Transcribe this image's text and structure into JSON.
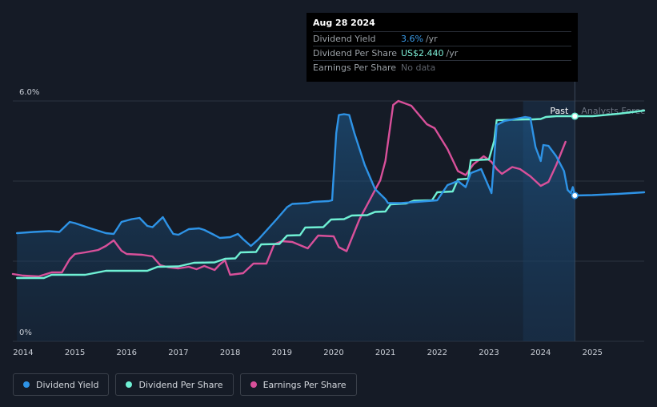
{
  "tooltip": {
    "date": "Aug 28 2024",
    "rows": [
      {
        "label": "Dividend Yield",
        "value": "3.6%",
        "unit": "/yr"
      },
      {
        "label": "Dividend Per Share",
        "value": "US$2.440",
        "unit": "/yr"
      },
      {
        "label": "Earnings Per Share",
        "value": "No data",
        "unit": ""
      }
    ]
  },
  "chart_labels": {
    "past": "Past",
    "forecast": "Analysts Forec"
  },
  "legend": [
    {
      "label": "Dividend Yield",
      "color": "#2e93e6"
    },
    {
      "label": "Dividend Per Share",
      "color": "#6ff0d4"
    },
    {
      "label": "Earnings Per Share",
      "color": "#d8509a"
    }
  ],
  "colors": {
    "yield": "#2e93e6",
    "dps": "#6ff0d4",
    "eps": "#d8509a",
    "grid": "#2c3340",
    "axis_text": "#c9ced6"
  },
  "chart_data": {
    "type": "line",
    "title": "",
    "xlabel": "",
    "ylabel": "",
    "x_ticks": [
      "2014",
      "2015",
      "2016",
      "2017",
      "2018",
      "2019",
      "2020",
      "2021",
      "2022",
      "2023",
      "2024",
      "2025"
    ],
    "y_ticks": [
      "0%",
      "6.0%"
    ],
    "xlim": [
      2013.8,
      2026.0
    ],
    "ylim": [
      0,
      6.0
    ],
    "divider_x": 2024.66,
    "forecast_shade_start": 2023.66,
    "series": [
      {
        "name": "Dividend Yield",
        "points": [
          [
            2013.88,
            2.7
          ],
          [
            2014.2,
            2.73
          ],
          [
            2014.5,
            2.75
          ],
          [
            2014.7,
            2.73
          ],
          [
            2014.9,
            2.98
          ],
          [
            2015.0,
            2.95
          ],
          [
            2015.3,
            2.82
          ],
          [
            2015.6,
            2.7
          ],
          [
            2015.75,
            2.68
          ],
          [
            2015.9,
            2.98
          ],
          [
            2016.1,
            3.05
          ],
          [
            2016.25,
            3.08
          ],
          [
            2016.4,
            2.88
          ],
          [
            2016.5,
            2.85
          ],
          [
            2016.7,
            3.1
          ],
          [
            2016.8,
            2.88
          ],
          [
            2016.9,
            2.68
          ],
          [
            2017.0,
            2.66
          ],
          [
            2017.2,
            2.8
          ],
          [
            2017.4,
            2.82
          ],
          [
            2017.5,
            2.78
          ],
          [
            2017.7,
            2.65
          ],
          [
            2017.8,
            2.58
          ],
          [
            2018.0,
            2.6
          ],
          [
            2018.15,
            2.68
          ],
          [
            2018.25,
            2.55
          ],
          [
            2018.4,
            2.38
          ],
          [
            2018.55,
            2.55
          ],
          [
            2018.9,
            3.05
          ],
          [
            2019.1,
            3.35
          ],
          [
            2019.2,
            3.43
          ],
          [
            2019.5,
            3.45
          ],
          [
            2019.6,
            3.48
          ],
          [
            2019.9,
            3.5
          ],
          [
            2019.97,
            3.52
          ],
          [
            2020.05,
            5.2
          ],
          [
            2020.1,
            5.65
          ],
          [
            2020.2,
            5.67
          ],
          [
            2020.3,
            5.65
          ],
          [
            2020.4,
            5.2
          ],
          [
            2020.6,
            4.4
          ],
          [
            2020.8,
            3.8
          ],
          [
            2021.0,
            3.55
          ],
          [
            2021.05,
            3.45
          ],
          [
            2021.1,
            3.45
          ],
          [
            2021.3,
            3.45
          ],
          [
            2021.6,
            3.48
          ],
          [
            2021.8,
            3.5
          ],
          [
            2022.0,
            3.52
          ],
          [
            2022.2,
            3.9
          ],
          [
            2022.4,
            4.0
          ],
          [
            2022.55,
            3.85
          ],
          [
            2022.65,
            4.2
          ],
          [
            2022.85,
            4.3
          ],
          [
            2023.05,
            3.7
          ],
          [
            2023.15,
            5.4
          ],
          [
            2023.3,
            5.5
          ],
          [
            2023.5,
            5.55
          ],
          [
            2023.7,
            5.6
          ],
          [
            2023.8,
            5.58
          ],
          [
            2023.9,
            4.85
          ],
          [
            2024.0,
            4.5
          ],
          [
            2024.05,
            4.9
          ],
          [
            2024.15,
            4.88
          ],
          [
            2024.3,
            4.62
          ],
          [
            2024.45,
            4.25
          ],
          [
            2024.52,
            3.78
          ],
          [
            2024.58,
            3.7
          ],
          [
            2024.62,
            3.85
          ],
          [
            2024.66,
            3.64
          ],
          [
            2025.0,
            3.65
          ],
          [
            2025.5,
            3.68
          ],
          [
            2026.0,
            3.72
          ]
        ],
        "forecast_from_x": 2024.66
      },
      {
        "name": "Dividend Per Share",
        "points": [
          [
            2013.88,
            1.58
          ],
          [
            2014.4,
            1.58
          ],
          [
            2014.55,
            1.66
          ],
          [
            2015.2,
            1.66
          ],
          [
            2015.6,
            1.76
          ],
          [
            2016.4,
            1.76
          ],
          [
            2016.6,
            1.86
          ],
          [
            2017.0,
            1.87
          ],
          [
            2017.3,
            1.96
          ],
          [
            2017.7,
            1.97
          ],
          [
            2017.9,
            2.06
          ],
          [
            2018.1,
            2.07
          ],
          [
            2018.2,
            2.22
          ],
          [
            2018.5,
            2.23
          ],
          [
            2018.6,
            2.42
          ],
          [
            2018.95,
            2.43
          ],
          [
            2019.1,
            2.64
          ],
          [
            2019.35,
            2.65
          ],
          [
            2019.45,
            2.84
          ],
          [
            2019.8,
            2.85
          ],
          [
            2019.95,
            3.04
          ],
          [
            2020.2,
            3.05
          ],
          [
            2020.35,
            3.14
          ],
          [
            2020.65,
            3.15
          ],
          [
            2020.8,
            3.23
          ],
          [
            2021.0,
            3.24
          ],
          [
            2021.1,
            3.42
          ],
          [
            2021.4,
            3.44
          ],
          [
            2021.55,
            3.51
          ],
          [
            2021.9,
            3.52
          ],
          [
            2022.0,
            3.72
          ],
          [
            2022.3,
            3.74
          ],
          [
            2022.4,
            4.04
          ],
          [
            2022.6,
            4.06
          ],
          [
            2022.65,
            4.52
          ],
          [
            2023.0,
            4.54
          ],
          [
            2023.1,
            5.0
          ],
          [
            2023.15,
            5.52
          ],
          [
            2023.7,
            5.54
          ],
          [
            2023.85,
            5.54
          ],
          [
            2024.0,
            5.55
          ],
          [
            2024.1,
            5.6
          ],
          [
            2024.3,
            5.62
          ],
          [
            2024.66,
            5.62
          ],
          [
            2025.0,
            5.62
          ],
          [
            2025.5,
            5.68
          ],
          [
            2026.0,
            5.76
          ]
        ],
        "forecast_from_x": 2024.66
      },
      {
        "name": "Earnings Per Share",
        "points": [
          [
            2013.8,
            1.68
          ],
          [
            2014.0,
            1.64
          ],
          [
            2014.3,
            1.62
          ],
          [
            2014.55,
            1.72
          ],
          [
            2014.75,
            1.72
          ],
          [
            2014.9,
            2.05
          ],
          [
            2015.0,
            2.18
          ],
          [
            2015.2,
            2.22
          ],
          [
            2015.45,
            2.28
          ],
          [
            2015.6,
            2.38
          ],
          [
            2015.75,
            2.52
          ],
          [
            2015.9,
            2.26
          ],
          [
            2016.0,
            2.18
          ],
          [
            2016.3,
            2.16
          ],
          [
            2016.5,
            2.12
          ],
          [
            2016.65,
            1.9
          ],
          [
            2016.8,
            1.85
          ],
          [
            2017.0,
            1.82
          ],
          [
            2017.2,
            1.86
          ],
          [
            2017.35,
            1.8
          ],
          [
            2017.5,
            1.88
          ],
          [
            2017.7,
            1.78
          ],
          [
            2017.8,
            1.92
          ],
          [
            2017.9,
            2.02
          ],
          [
            2018.0,
            1.66
          ],
          [
            2018.25,
            1.7
          ],
          [
            2018.45,
            1.94
          ],
          [
            2018.7,
            1.94
          ],
          [
            2018.85,
            2.42
          ],
          [
            2019.0,
            2.5
          ],
          [
            2019.2,
            2.48
          ],
          [
            2019.5,
            2.32
          ],
          [
            2019.7,
            2.64
          ],
          [
            2020.0,
            2.62
          ],
          [
            2020.1,
            2.35
          ],
          [
            2020.25,
            2.25
          ],
          [
            2020.5,
            3.05
          ],
          [
            2020.9,
            4.02
          ],
          [
            2021.0,
            4.5
          ],
          [
            2021.15,
            5.9
          ],
          [
            2021.25,
            6.0
          ],
          [
            2021.5,
            5.88
          ],
          [
            2021.8,
            5.42
          ],
          [
            2021.95,
            5.32
          ],
          [
            2022.2,
            4.8
          ],
          [
            2022.4,
            4.25
          ],
          [
            2022.55,
            4.15
          ],
          [
            2022.7,
            4.42
          ],
          [
            2022.9,
            4.62
          ],
          [
            2023.05,
            4.48
          ],
          [
            2023.15,
            4.3
          ],
          [
            2023.25,
            4.18
          ],
          [
            2023.45,
            4.35
          ],
          [
            2023.6,
            4.3
          ],
          [
            2023.8,
            4.12
          ],
          [
            2024.0,
            3.88
          ],
          [
            2024.15,
            3.98
          ],
          [
            2024.3,
            4.4
          ],
          [
            2024.48,
            4.98
          ]
        ]
      }
    ]
  }
}
